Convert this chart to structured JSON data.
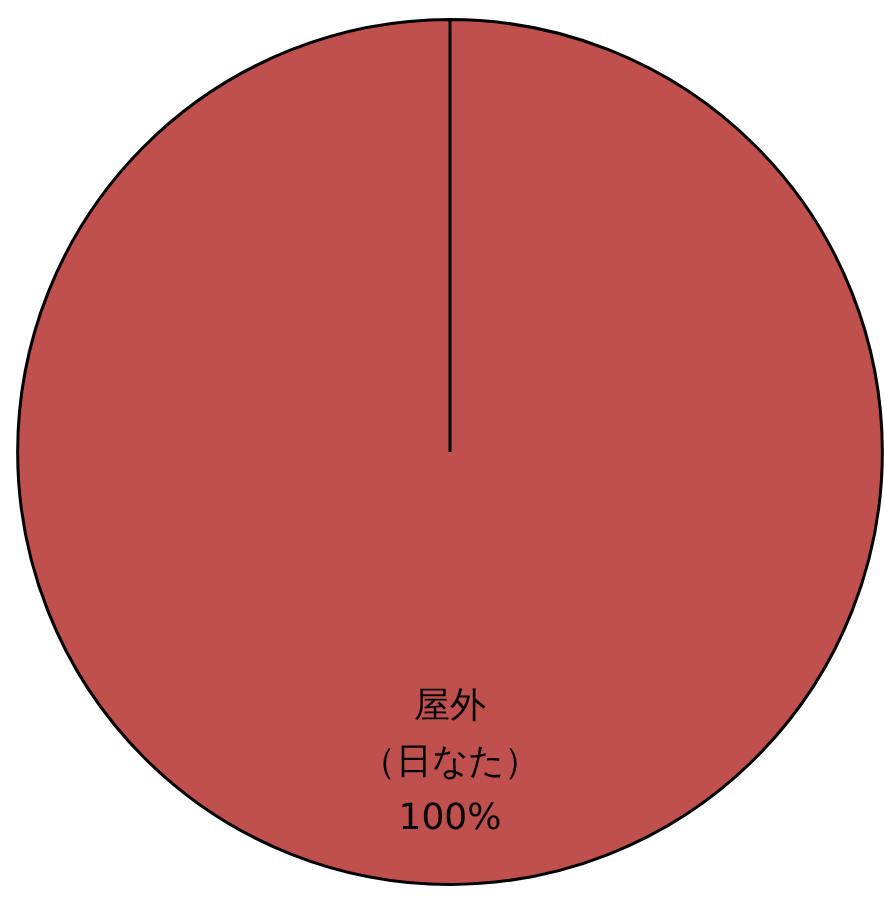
{
  "chart_data": {
    "type": "pie",
    "categories": [
      "屋外（日なた）"
    ],
    "values": [
      100
    ],
    "colors": [
      "#c0504d"
    ],
    "value_labels": [
      "100%"
    ],
    "legend": false
  }
}
